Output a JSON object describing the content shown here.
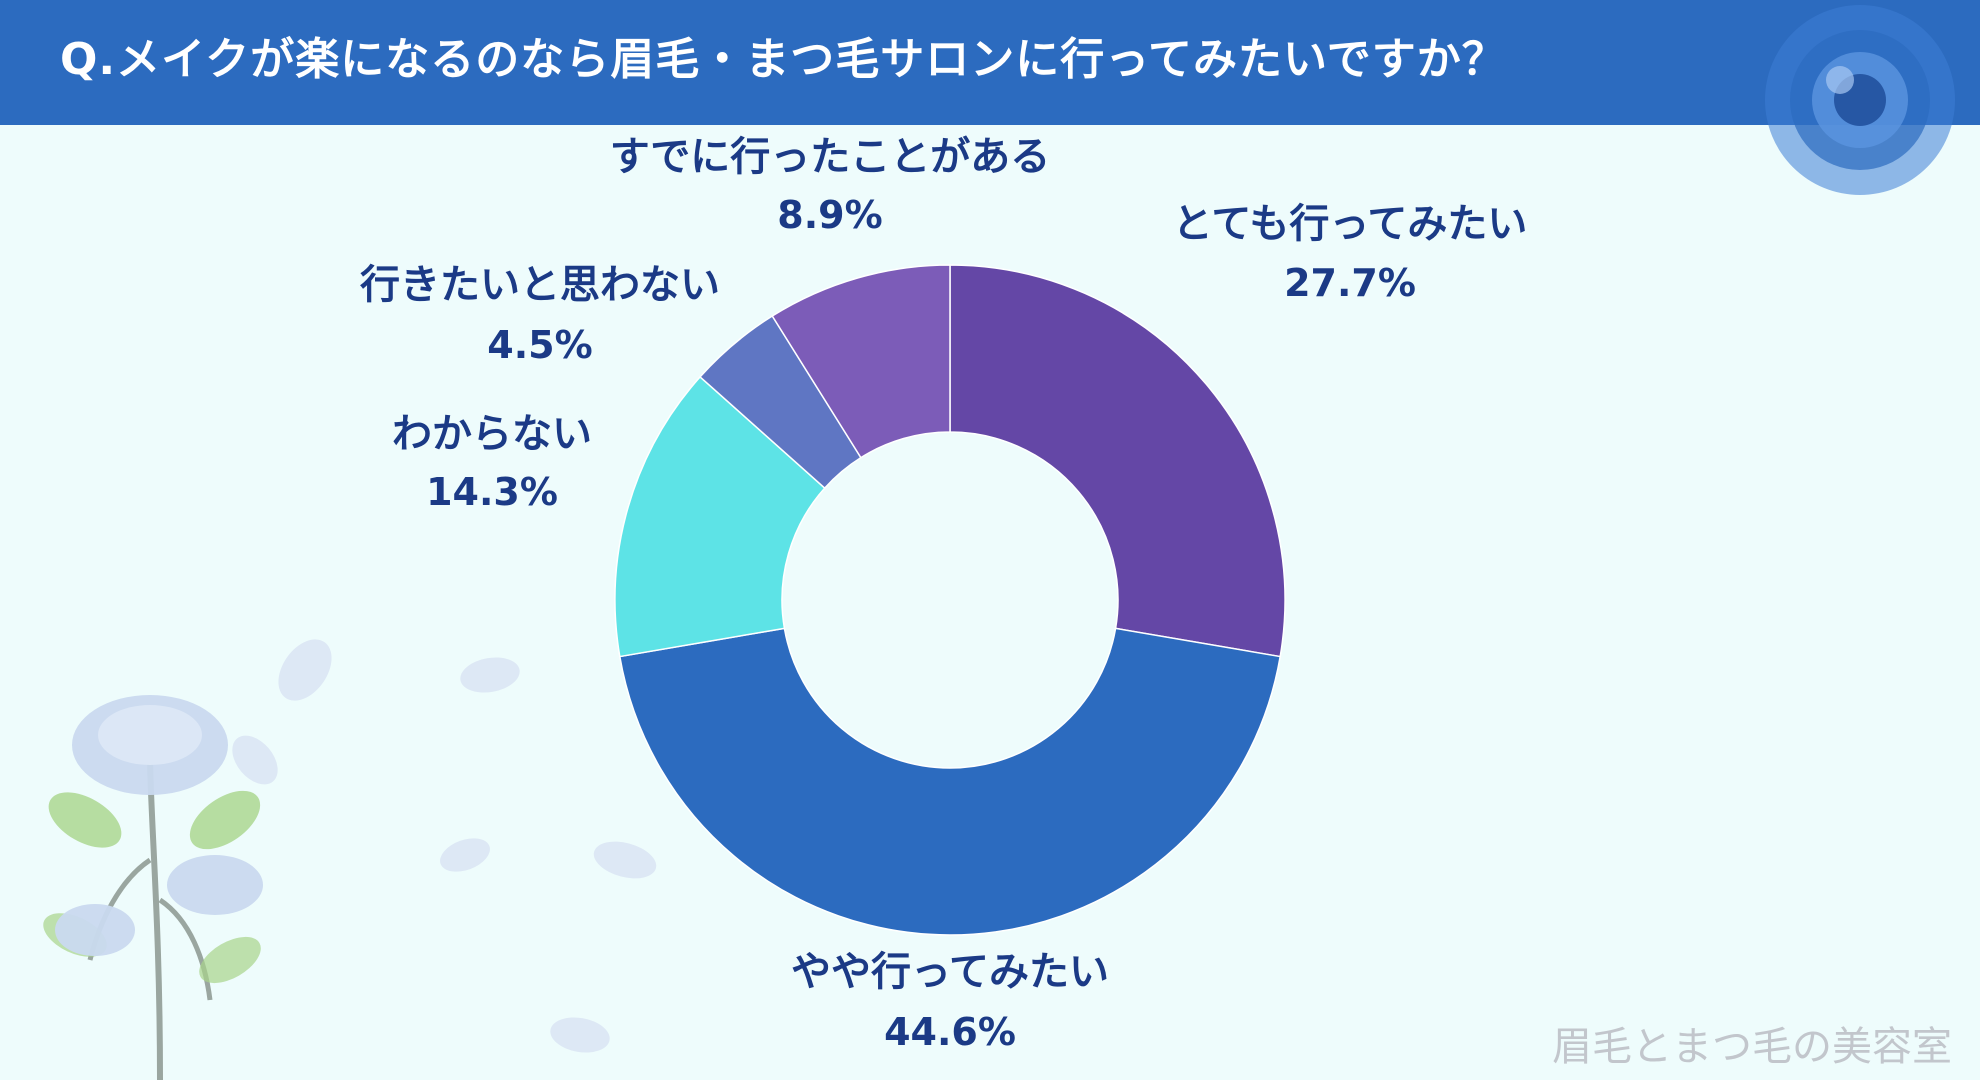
{
  "header": {
    "title": "Q.メイクが楽になるのなら眉毛・まつ毛サロンに行ってみたいですか？"
  },
  "chart_data": {
    "type": "pie",
    "donut": true,
    "title": "Q.メイクが楽になるのなら眉毛・まつ毛サロンに行ってみたいですか？",
    "slices": [
      {
        "label": "とても行ってみたい",
        "value": 27.7,
        "value_label": "27.7%",
        "color": "#6447a6"
      },
      {
        "label": "やや行ってみたい",
        "value": 44.6,
        "value_label": "44.6%",
        "color": "#2c6bbf"
      },
      {
        "label": "わからない",
        "value": 14.3,
        "value_label": "14.3%",
        "color": "#5de3e6"
      },
      {
        "label": "行きたいと思わない",
        "value": 4.5,
        "value_label": "4.5%",
        "color": "#5f76c3"
      },
      {
        "label": "すでに行ったことがある",
        "value": 8.9,
        "value_label": "8.9%",
        "color": "#7c5cb8"
      }
    ]
  },
  "decor": {
    "rose_icon": "blue-rose-icon",
    "petal_icon": "petal-icon",
    "leaf_color": "#a8d48a",
    "rose_color": "#3e7ed6",
    "petal_color": "#c9d9ef"
  },
  "watermark": "眉毛とまつ毛の美容室"
}
